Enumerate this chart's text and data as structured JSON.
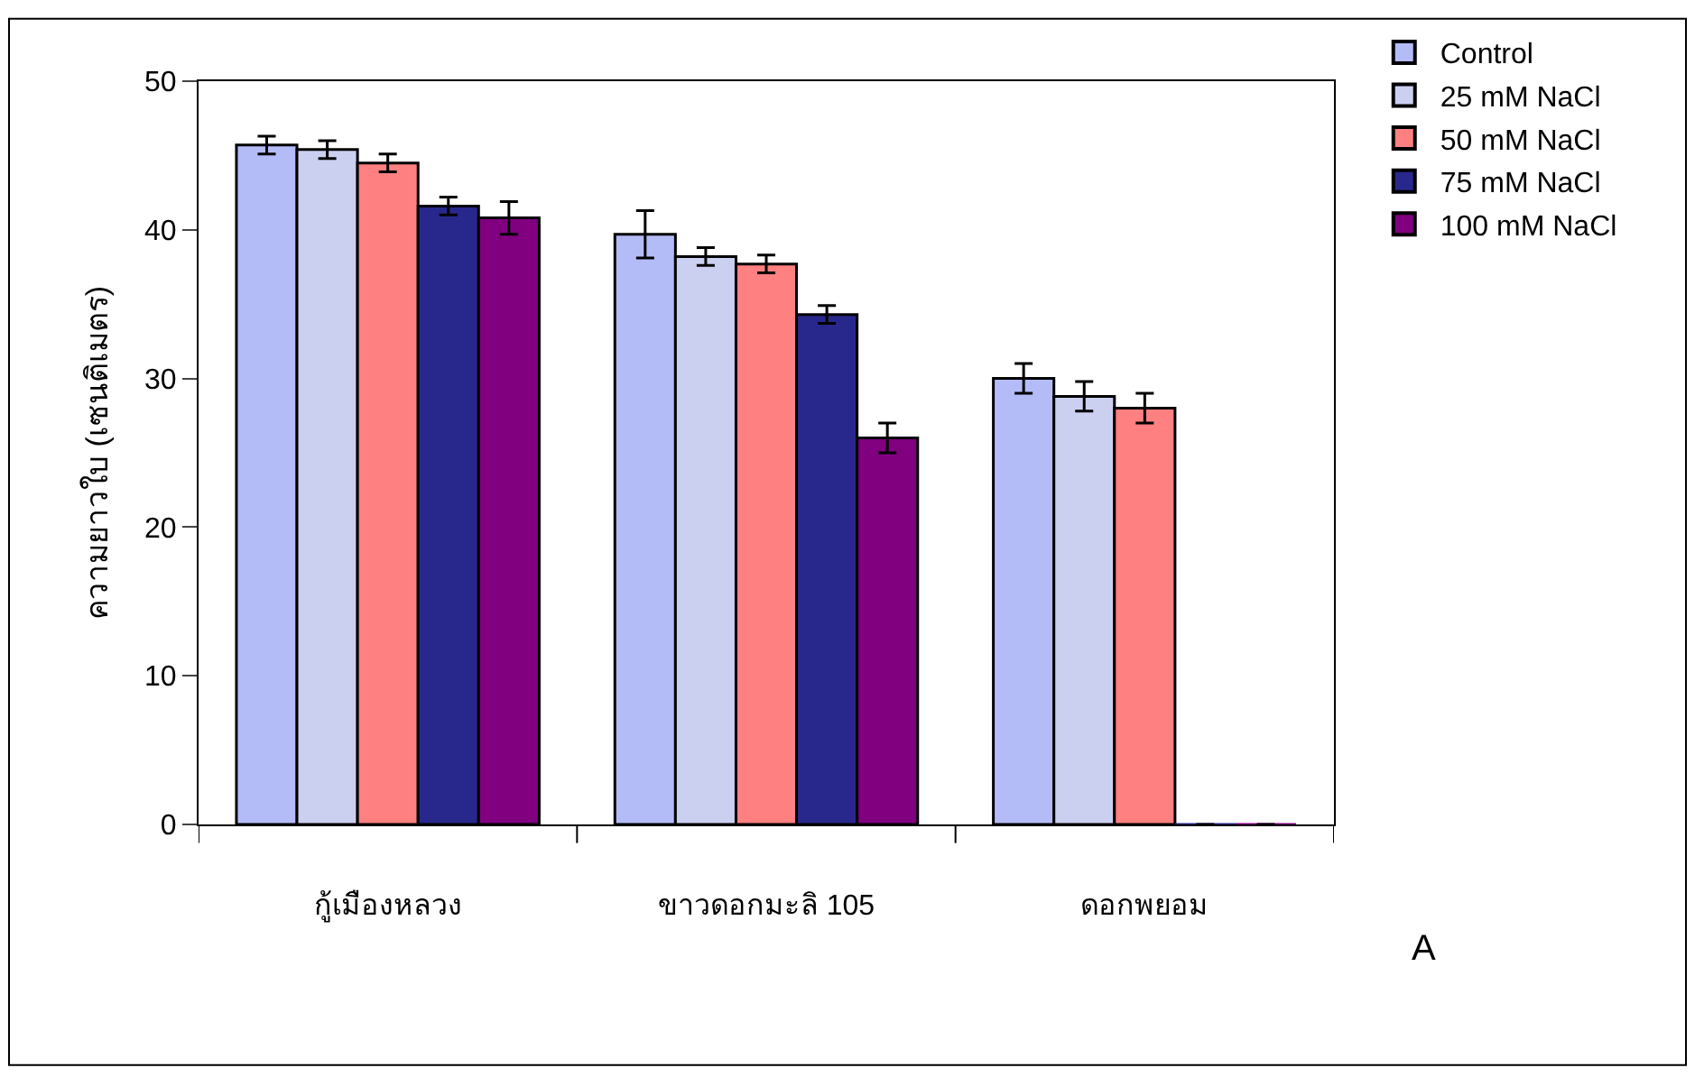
{
  "chart_data": {
    "type": "bar",
    "ylabel": "ความยาวใบ (เซนติเมตร)",
    "categories": [
      "กู้เมืองหลวง",
      "ขาวดอกมะลิ 105",
      "ดอกพยอม"
    ],
    "series": [
      {
        "name": "Control",
        "color": "#b4bcf8",
        "values": [
          45.7,
          39.7,
          30.0
        ],
        "errors": [
          0.6,
          1.6,
          1.0
        ]
      },
      {
        "name": "25 mM NaCl",
        "color": "#ccd0f0",
        "values": [
          45.4,
          38.2,
          28.8
        ],
        "errors": [
          0.6,
          0.6,
          1.0
        ]
      },
      {
        "name": "50 mM NaCl",
        "color": "#ff8080",
        "values": [
          44.5,
          37.7,
          28.0
        ],
        "errors": [
          0.6,
          0.6,
          1.0
        ]
      },
      {
        "name": "75 mM NaCl",
        "color": "#28288c",
        "values": [
          41.6,
          34.3,
          0
        ],
        "errors": [
          0.6,
          0.6,
          null
        ]
      },
      {
        "name": "100 mM NaCl",
        "color": "#800080",
        "values": [
          40.8,
          26.0,
          0
        ],
        "errors": [
          1.1,
          1.0,
          null
        ]
      }
    ],
    "ylim": [
      0,
      50
    ],
    "yticks": [
      0,
      10,
      20,
      30,
      40,
      50
    ],
    "legend": "top right",
    "annotations": [
      "A"
    ]
  }
}
